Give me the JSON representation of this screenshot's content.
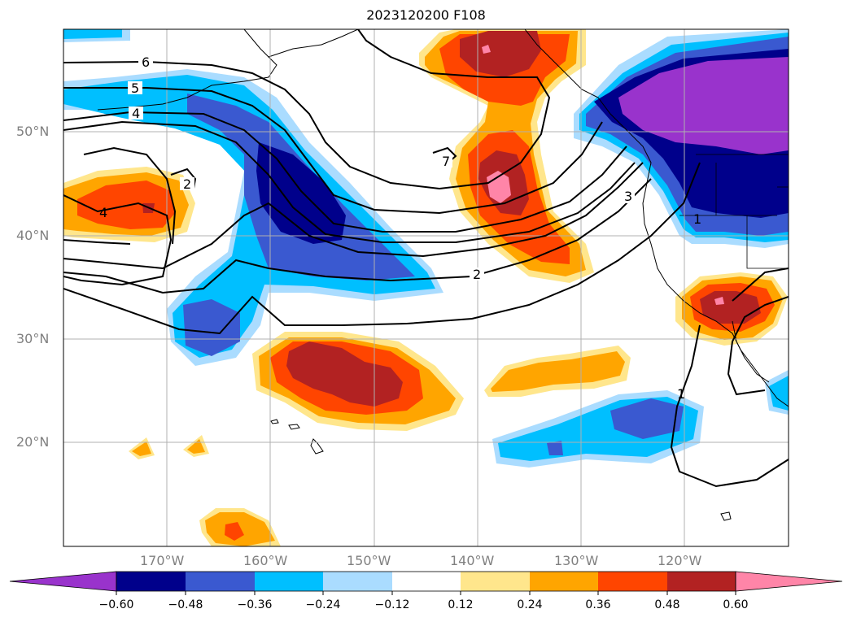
{
  "title": "2023120200 F108",
  "map": {
    "lat_labels": [
      "50°N",
      "40°N",
      "30°N",
      "20°N"
    ],
    "lon_labels": [
      "170°W",
      "160°W",
      "150°W",
      "140°W",
      "130°W",
      "120°W"
    ],
    "contour_labels": [
      "6",
      "5",
      "4",
      "2",
      "4",
      "7",
      "3",
      "2",
      "1",
      "1"
    ]
  },
  "colorbar": {
    "ticks": [
      "−0.60",
      "−0.48",
      "−0.36",
      "−0.24",
      "−0.12",
      "0.12",
      "0.24",
      "0.36",
      "0.48",
      "0.60"
    ],
    "colors": [
      "#9933cc",
      "#00008b",
      "#3a59d0",
      "#00bfff",
      "#aadcff",
      "#ffffff",
      "#ffe68c",
      "#ffa500",
      "#ff4500",
      "#b22222",
      "#ff85a8"
    ]
  }
}
